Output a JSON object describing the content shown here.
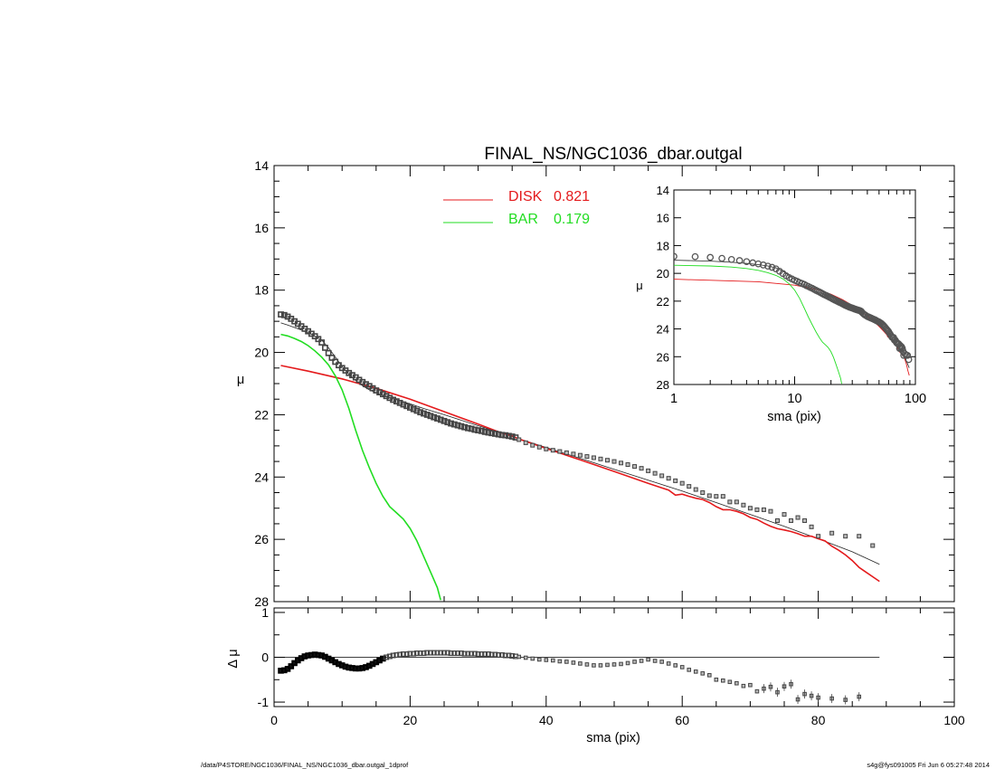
{
  "colors": {
    "disk": "#e41a1c",
    "bar": "#22dd22",
    "data": "#444444",
    "total": "#222222"
  },
  "footer": {
    "left": "/data/P4STORE/NGC1036/FINAL_NS/NGC1036_dbar.outgal_1dprof",
    "right": "s4g@fys091005  Fri Jun  6 05:27:48 2014"
  },
  "chart_data": [
    {
      "type": "scatter",
      "title": "FINAL_NS/NGC1036_dbar.outgal",
      "xlabel": "",
      "ylabel": "μ",
      "xlim": [
        0,
        100
      ],
      "ylim": [
        28,
        14
      ],
      "x_ticks": [
        "0",
        "20",
        "40",
        "60",
        "80",
        "100"
      ],
      "y_ticks": [
        "14",
        "16",
        "18",
        "20",
        "22",
        "24",
        "26",
        "28"
      ],
      "legend_placement": "top-center",
      "legend": [
        {
          "name": "DISK",
          "value": "0.821",
          "color": "#e41a1c"
        },
        {
          "name": "BAR",
          "value": "0.179",
          "color": "#22dd22"
        }
      ],
      "observed_points": {
        "x": [
          1.0,
          1.5,
          2.0,
          2.5,
          3.0,
          3.5,
          4.0,
          4.5,
          5.0,
          5.5,
          6.0,
          6.5,
          7.0,
          7.5,
          8.0,
          8.5,
          9.0,
          9.5,
          10.0,
          10.5,
          11.0,
          11.5,
          12.0,
          12.5,
          13.0,
          13.5,
          14.0,
          14.5,
          15.0,
          15.5,
          16.0,
          16.5,
          17.0,
          17.5,
          18.0,
          18.5,
          19.0,
          19.5,
          20.0,
          20.5,
          21.0,
          21.5,
          22.0,
          22.5,
          23.0,
          23.5,
          24.0,
          24.5,
          25.0,
          25.5,
          26.0,
          26.5,
          27.0,
          27.5,
          28.0,
          28.5,
          29.0,
          29.5,
          30.0,
          30.5,
          31.0,
          31.5,
          32.0,
          32.5,
          33.0,
          33.5,
          34.0,
          34.5,
          35.0,
          35.5,
          36,
          37,
          38,
          39,
          40,
          41,
          42,
          43,
          44,
          45,
          46,
          47,
          48,
          49,
          50,
          51,
          52,
          53,
          54,
          55,
          56,
          57,
          58,
          59,
          60,
          61,
          62,
          63,
          64,
          65,
          66,
          67,
          68,
          69,
          70,
          71,
          72,
          73,
          74,
          75,
          76,
          77,
          78,
          79,
          80,
          82,
          84,
          86,
          88
        ],
        "y": [
          18.78,
          18.8,
          18.85,
          18.92,
          19.0,
          19.08,
          19.16,
          19.24,
          19.32,
          19.4,
          19.48,
          19.57,
          19.68,
          19.85,
          20.02,
          20.17,
          20.3,
          20.41,
          20.5,
          20.58,
          20.66,
          20.73,
          20.8,
          20.88,
          20.95,
          21.02,
          21.08,
          21.15,
          21.22,
          21.28,
          21.34,
          21.4,
          21.46,
          21.52,
          21.57,
          21.62,
          21.67,
          21.72,
          21.77,
          21.82,
          21.87,
          21.92,
          21.96,
          22.0,
          22.04,
          22.08,
          22.12,
          22.16,
          22.2,
          22.24,
          22.28,
          22.31,
          22.34,
          22.37,
          22.4,
          22.43,
          22.45,
          22.48,
          22.5,
          22.52,
          22.55,
          22.57,
          22.59,
          22.61,
          22.63,
          22.65,
          22.66,
          22.68,
          22.7,
          22.73,
          22.8,
          22.9,
          22.98,
          23.04,
          23.1,
          23.14,
          23.18,
          23.22,
          23.26,
          23.3,
          23.34,
          23.38,
          23.42,
          23.46,
          23.5,
          23.55,
          23.6,
          23.66,
          23.72,
          23.8,
          23.88,
          23.96,
          24.04,
          24.12,
          24.2,
          24.3,
          24.4,
          24.5,
          24.6,
          24.62,
          24.62,
          24.8,
          24.8,
          24.9,
          25.0,
          25.05,
          25.05,
          25.1,
          25.4,
          25.2,
          25.4,
          25.3,
          25.4,
          25.6,
          25.9,
          25.8,
          25.9,
          25.9,
          26.2
        ]
      },
      "total_model": {
        "x": [
          1,
          2,
          3,
          4,
          5,
          6,
          7,
          8,
          9,
          10,
          11,
          12,
          13,
          14,
          15,
          16,
          17,
          18,
          20,
          22,
          25,
          30,
          35,
          40,
          45,
          50,
          55,
          60,
          65,
          70,
          75,
          80,
          85,
          89
        ],
        "y": [
          19.05,
          19.12,
          19.2,
          19.28,
          19.37,
          19.47,
          19.6,
          19.85,
          20.15,
          20.45,
          20.7,
          20.9,
          21.07,
          21.2,
          21.3,
          21.38,
          21.45,
          21.52,
          21.65,
          21.8,
          22.0,
          22.35,
          22.7,
          23.05,
          23.4,
          23.75,
          24.1,
          24.45,
          24.82,
          25.2,
          25.58,
          25.98,
          26.4,
          26.8
        ]
      },
      "series": [
        {
          "name": "DISK",
          "x": [
            1,
            5,
            10,
            15,
            20,
            25,
            30,
            33,
            35,
            36,
            40,
            45,
            50,
            55,
            57,
            58,
            59,
            60,
            61,
            62,
            63,
            64,
            65,
            66,
            67,
            68,
            69,
            70,
            71,
            72,
            73,
            74,
            75,
            76,
            77,
            78,
            79,
            80,
            81,
            82,
            83,
            84,
            85,
            86,
            87,
            88,
            89
          ],
          "y": [
            20.42,
            20.6,
            20.85,
            21.15,
            21.5,
            21.9,
            22.3,
            22.55,
            22.68,
            22.78,
            23.08,
            23.45,
            23.82,
            24.2,
            24.35,
            24.42,
            24.58,
            24.55,
            24.62,
            24.68,
            24.72,
            24.82,
            24.95,
            25.05,
            25.05,
            25.1,
            25.18,
            25.3,
            25.36,
            25.48,
            25.58,
            25.66,
            25.7,
            25.75,
            25.82,
            25.9,
            25.9,
            25.98,
            26.05,
            26.22,
            26.35,
            26.5,
            26.68,
            26.9,
            27.05,
            27.2,
            27.35
          ]
        },
        {
          "name": "BAR",
          "x": [
            1,
            2,
            3,
            4,
            5,
            6,
            7,
            8,
            9,
            10,
            11,
            12,
            13,
            14,
            15,
            16,
            17,
            18,
            19,
            20,
            21,
            22,
            23,
            24,
            24.5
          ],
          "y": [
            19.42,
            19.47,
            19.55,
            19.65,
            19.78,
            19.95,
            20.15,
            20.4,
            20.75,
            21.2,
            21.8,
            22.5,
            23.15,
            23.7,
            24.2,
            24.62,
            24.95,
            25.15,
            25.35,
            25.65,
            26.05,
            26.55,
            27.05,
            27.55,
            27.95
          ]
        }
      ]
    },
    {
      "type": "scatter",
      "title": "",
      "xlabel": "sma (pix)",
      "ylabel": "Δ μ",
      "xlim": [
        0,
        100
      ],
      "ylim": [
        1.1,
        -1.1
      ],
      "x_ticks": [
        "0",
        "20",
        "40",
        "60",
        "80",
        "100"
      ],
      "y_ticks": [
        "1",
        "0",
        "-1"
      ],
      "reference_line": 0,
      "residual_points": {
        "x": [
          1.0,
          1.5,
          2.0,
          2.5,
          3.0,
          3.5,
          4.0,
          4.5,
          5.0,
          5.5,
          6.0,
          6.5,
          7.0,
          7.5,
          8.0,
          8.5,
          9.0,
          9.5,
          10.0,
          10.5,
          11.0,
          11.5,
          12.0,
          12.5,
          13.0,
          13.5,
          14.0,
          14.5,
          15.0,
          15.5,
          16.0,
          16.5,
          17.0,
          17.5,
          18.0,
          18.5,
          19.0,
          19.5,
          20.0,
          20.5,
          21.0,
          21.5,
          22.0,
          22.5,
          23.0,
          23.5,
          24.0,
          24.5,
          25.0,
          25.5,
          26.0,
          26.5,
          27.0,
          27.5,
          28.0,
          28.5,
          29.0,
          29.5,
          30.0,
          30.5,
          31.0,
          31.5,
          32.0,
          32.5,
          33.0,
          33.5,
          34.0,
          34.5,
          35.0,
          35.5,
          36,
          37,
          38,
          39,
          40,
          41,
          42,
          43,
          44,
          45,
          46,
          47,
          48,
          49,
          50,
          51,
          52,
          53,
          54,
          55,
          56,
          57,
          58,
          59,
          60,
          61,
          62,
          63,
          64,
          65,
          66,
          67,
          68,
          69,
          70,
          71,
          72,
          73,
          74,
          75,
          76,
          77,
          78,
          79,
          80,
          82,
          84,
          86
        ],
        "y": [
          -0.3,
          -0.29,
          -0.26,
          -0.2,
          -0.13,
          -0.07,
          -0.02,
          0.02,
          0.04,
          0.05,
          0.06,
          0.05,
          0.04,
          0.01,
          -0.03,
          -0.07,
          -0.11,
          -0.15,
          -0.18,
          -0.21,
          -0.23,
          -0.24,
          -0.25,
          -0.25,
          -0.24,
          -0.22,
          -0.19,
          -0.15,
          -0.11,
          -0.07,
          -0.03,
          0.0,
          0.02,
          0.04,
          0.05,
          0.06,
          0.07,
          0.07,
          0.08,
          0.08,
          0.09,
          0.09,
          0.09,
          0.1,
          0.1,
          0.1,
          0.1,
          0.1,
          0.1,
          0.1,
          0.09,
          0.09,
          0.09,
          0.09,
          0.08,
          0.08,
          0.08,
          0.08,
          0.07,
          0.07,
          0.07,
          0.07,
          0.06,
          0.06,
          0.05,
          0.05,
          0.04,
          0.04,
          0.03,
          0.02,
          0.01,
          -0.01,
          -0.03,
          -0.05,
          -0.06,
          -0.07,
          -0.09,
          -0.1,
          -0.12,
          -0.14,
          -0.16,
          -0.18,
          -0.18,
          -0.17,
          -0.16,
          -0.15,
          -0.13,
          -0.1,
          -0.08,
          -0.05,
          -0.08,
          -0.1,
          -0.14,
          -0.18,
          -0.22,
          -0.28,
          -0.32,
          -0.36,
          -0.4,
          -0.5,
          -0.52,
          -0.55,
          -0.58,
          -0.64,
          -0.62,
          -0.76,
          -0.7,
          -0.66,
          -0.78,
          -0.65,
          -0.6,
          -0.94,
          -0.82,
          -0.86,
          -0.9,
          -0.92,
          -0.95,
          -0.88
        ]
      }
    },
    {
      "type": "scatter",
      "title": "",
      "xlabel": "sma (pix)",
      "ylabel": "μ",
      "x_scale": "log",
      "xlim": [
        1,
        100
      ],
      "ylim": [
        28,
        14
      ],
      "x_ticks": [
        "1",
        "10",
        "100"
      ],
      "y_ticks": [
        "14",
        "16",
        "18",
        "20",
        "22",
        "24",
        "26",
        "28"
      ]
    }
  ]
}
